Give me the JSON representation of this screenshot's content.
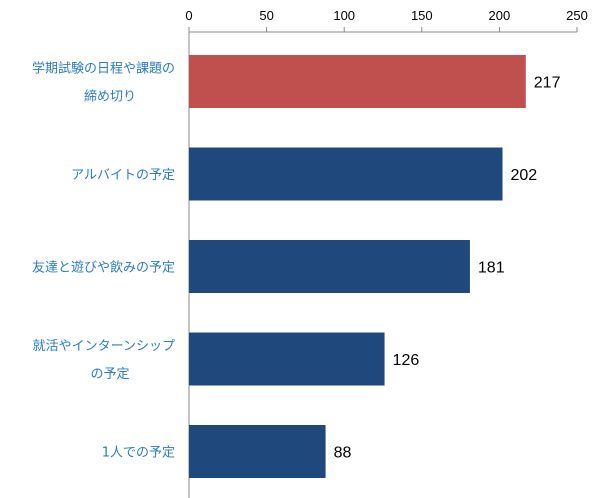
{
  "chart_data": {
    "type": "bar",
    "orientation": "horizontal",
    "categories": [
      [
        "学期試験の日程や課題の",
        "締め切り"
      ],
      [
        "アルバイトの予定"
      ],
      [
        "友達と遊びや飲みの予定"
      ],
      [
        "就活やインターンシップ",
        "の予定"
      ],
      [
        "1人での予定"
      ]
    ],
    "values": [
      217,
      202,
      181,
      126,
      88
    ],
    "data_labels": [
      "217",
      "202",
      "181",
      "126",
      "88"
    ],
    "bar_colors": [
      "#c0504d",
      "#1f497d",
      "#1f497d",
      "#1f497d",
      "#1f497d"
    ],
    "xlim": [
      0,
      250
    ],
    "xticks": [
      0,
      50,
      100,
      150,
      200,
      250
    ],
    "xtick_labels": [
      "0",
      "50",
      "100",
      "150",
      "200",
      "250"
    ],
    "axis_position": "top",
    "grid": false,
    "title": "",
    "xlabel": "",
    "ylabel": ""
  }
}
